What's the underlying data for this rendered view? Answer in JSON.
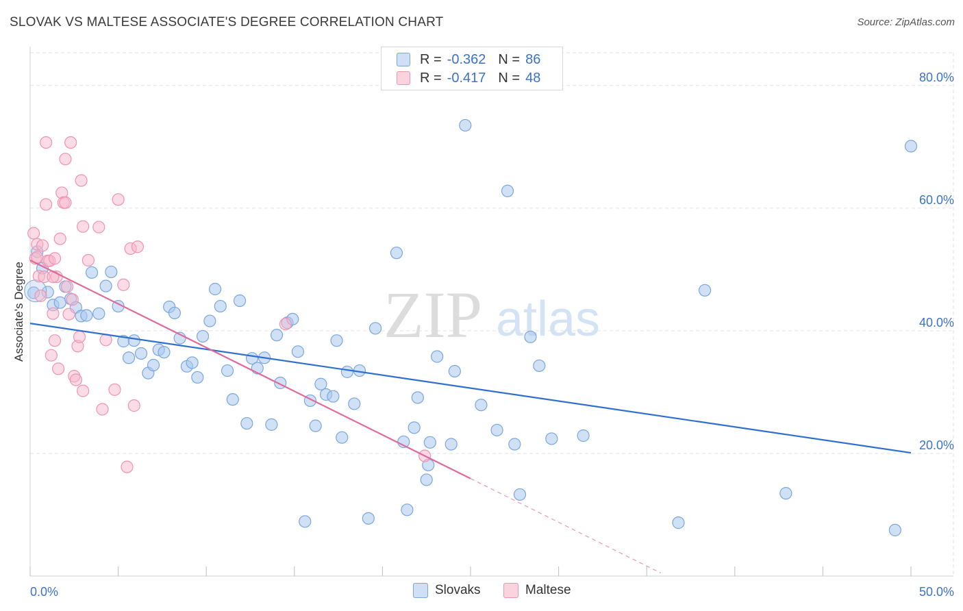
{
  "title": "SLOVAK VS MALTESE ASSOCIATE'S DEGREE CORRELATION CHART",
  "source": "Source: ZipAtlas.com",
  "watermark": {
    "zip": "ZIP",
    "atlas": "atlas"
  },
  "colors": {
    "blue_fill": "#a9c8ee",
    "blue_stroke": "#7aa6dd",
    "blue_line": "#2f6fd0",
    "pink_fill": "#f7b8cc",
    "pink_stroke": "#ee93b1",
    "pink_line": "#e0699a",
    "axis_text": "#3b72c9",
    "grid": "#e2e2e2"
  },
  "legend_top": {
    "rows": [
      {
        "r_label": "R =",
        "r_value": "-0.362",
        "n_label": "N =",
        "n_value": "86",
        "color": "#a9c8ee",
        "border": "#7aa6dd"
      },
      {
        "r_label": "R =",
        "r_value": "-0.417",
        "n_label": "N =",
        "n_value": "48",
        "color": "#f7b8cc",
        "border": "#ee93b1"
      }
    ]
  },
  "legend_bottom": [
    {
      "label": "Slovaks",
      "color": "#a9c8ee",
      "border": "#7aa6dd"
    },
    {
      "label": "Maltese",
      "color": "#f7b8cc",
      "border": "#ee93b1"
    }
  ],
  "chart_data": {
    "type": "scatter",
    "title": "SLOVAK VS MALTESE ASSOCIATE'S DEGREE CORRELATION CHART",
    "xlabel": "",
    "ylabel": "Associate's Degree",
    "xlim": [
      0,
      50
    ],
    "ylim": [
      0,
      85
    ],
    "x_tick_labels": [
      {
        "value": 0,
        "label": "0.0%"
      },
      {
        "value": 50,
        "label": "50.0%"
      }
    ],
    "y_tick_labels": [
      {
        "value": 20,
        "label": "20.0%"
      },
      {
        "value": 40,
        "label": "40.0%"
      },
      {
        "value": 60,
        "label": "60.0%"
      },
      {
        "value": 80,
        "label": "80.0%"
      }
    ],
    "x_minor_ticks": [
      0,
      5,
      10,
      15,
      20,
      25,
      30,
      35,
      40,
      45,
      50
    ],
    "grid": true,
    "series": [
      {
        "name": "Slovaks",
        "color": "#a9c8ee",
        "r": -0.362,
        "n": 86,
        "trend": {
          "x0": 0,
          "y0": 41.2,
          "x1": 50,
          "y1": 20.1
        },
        "points": [
          [
            0.2,
            46.2
          ],
          [
            0.4,
            52.9
          ],
          [
            0.7,
            50.2
          ],
          [
            1.0,
            46.3
          ],
          [
            1.3,
            44.2
          ],
          [
            1.7,
            44.6
          ],
          [
            2.0,
            47.2
          ],
          [
            2.3,
            45.2
          ],
          [
            2.6,
            43.8
          ],
          [
            2.9,
            42.4
          ],
          [
            3.2,
            42.5
          ],
          [
            3.5,
            49.5
          ],
          [
            3.9,
            42.8
          ],
          [
            4.3,
            47.3
          ],
          [
            4.6,
            49.6
          ],
          [
            5.0,
            44.0
          ],
          [
            5.3,
            38.3
          ],
          [
            5.6,
            35.6
          ],
          [
            5.9,
            38.4
          ],
          [
            6.3,
            36.3
          ],
          [
            6.7,
            33.1
          ],
          [
            7.0,
            34.4
          ],
          [
            7.3,
            36.9
          ],
          [
            7.6,
            36.5
          ],
          [
            7.9,
            43.9
          ],
          [
            8.2,
            42.9
          ],
          [
            8.5,
            38.8
          ],
          [
            8.9,
            34.2
          ],
          [
            9.2,
            34.8
          ],
          [
            9.5,
            32.4
          ],
          [
            9.8,
            39.1
          ],
          [
            10.2,
            41.6
          ],
          [
            10.5,
            46.8
          ],
          [
            10.8,
            44.0
          ],
          [
            11.2,
            33.5
          ],
          [
            11.5,
            28.8
          ],
          [
            11.9,
            44.9
          ],
          [
            12.3,
            24.9
          ],
          [
            12.6,
            35.5
          ],
          [
            12.9,
            33.9
          ],
          [
            13.3,
            35.6
          ],
          [
            13.7,
            24.7
          ],
          [
            14.0,
            39.3
          ],
          [
            14.2,
            31.5
          ],
          [
            14.6,
            41.3
          ],
          [
            14.9,
            41.9
          ],
          [
            15.2,
            36.6
          ],
          [
            15.6,
            8.9
          ],
          [
            15.9,
            28.6
          ],
          [
            16.2,
            24.5
          ],
          [
            16.5,
            31.3
          ],
          [
            16.8,
            29.6
          ],
          [
            17.2,
            29.3
          ],
          [
            17.4,
            38.4
          ],
          [
            17.7,
            22.6
          ],
          [
            18.0,
            33.3
          ],
          [
            18.4,
            28.1
          ],
          [
            18.7,
            33.5
          ],
          [
            19.2,
            9.4
          ],
          [
            19.6,
            40.4
          ],
          [
            20.8,
            52.7
          ],
          [
            21.2,
            21.9
          ],
          [
            21.4,
            10.8
          ],
          [
            21.8,
            24.2
          ],
          [
            22.0,
            29.1
          ],
          [
            22.5,
            15.7
          ],
          [
            22.6,
            18.1
          ],
          [
            22.7,
            21.8
          ],
          [
            23.1,
            35.8
          ],
          [
            23.9,
            21.5
          ],
          [
            24.1,
            33.4
          ],
          [
            24.7,
            73.5
          ],
          [
            25.6,
            27.9
          ],
          [
            26.5,
            23.8
          ],
          [
            27.1,
            62.8
          ],
          [
            27.5,
            21.5
          ],
          [
            27.8,
            13.3
          ],
          [
            28.4,
            39.0
          ],
          [
            28.9,
            34.3
          ],
          [
            29.6,
            22.4
          ],
          [
            31.4,
            22.9
          ],
          [
            36.8,
            8.7
          ],
          [
            38.3,
            46.6
          ],
          [
            42.9,
            13.5
          ],
          [
            49.1,
            7.5
          ],
          [
            50.0,
            70.1
          ]
        ]
      },
      {
        "name": "Maltese",
        "color": "#f7b8cc",
        "r": -0.417,
        "n": 48,
        "trend": {
          "x0": 0,
          "y0": 51.5,
          "x1": 25,
          "y1": 15.9
        },
        "trend_dashed": {
          "x0": 25,
          "y0": 15.9,
          "x1": 35.8,
          "y1": 0.5
        },
        "points": [
          [
            0.2,
            55.9
          ],
          [
            0.3,
            51.8
          ],
          [
            0.4,
            54.1
          ],
          [
            0.5,
            48.9
          ],
          [
            0.6,
            45.7
          ],
          [
            0.7,
            53.9
          ],
          [
            0.8,
            48.8
          ],
          [
            0.9,
            60.6
          ],
          [
            1.0,
            51.4
          ],
          [
            1.1,
            51.4
          ],
          [
            1.2,
            36.0
          ],
          [
            1.3,
            42.8
          ],
          [
            1.4,
            38.4
          ],
          [
            1.4,
            51.8
          ],
          [
            1.5,
            48.8
          ],
          [
            1.6,
            33.8
          ],
          [
            1.7,
            55.0
          ],
          [
            1.8,
            62.5
          ],
          [
            1.9,
            60.9
          ],
          [
            2.0,
            68.0
          ],
          [
            2.1,
            47.2
          ],
          [
            2.2,
            42.7
          ],
          [
            2.3,
            70.7
          ],
          [
            2.4,
            45.1
          ],
          [
            2.5,
            32.6
          ],
          [
            2.6,
            32.0
          ],
          [
            2.7,
            37.5
          ],
          [
            2.8,
            39.0
          ],
          [
            2.9,
            64.5
          ],
          [
            3.0,
            30.2
          ],
          [
            3.0,
            57.0
          ],
          [
            3.3,
            51.5
          ],
          [
            3.9,
            56.9
          ],
          [
            4.1,
            27.2
          ],
          [
            4.3,
            38.5
          ],
          [
            4.8,
            30.4
          ],
          [
            5.0,
            61.4
          ],
          [
            5.3,
            47.5
          ],
          [
            5.5,
            17.8
          ],
          [
            5.7,
            53.4
          ],
          [
            5.9,
            27.8
          ],
          [
            6.1,
            53.7
          ],
          [
            14.5,
            41.1
          ],
          [
            22.4,
            19.6
          ],
          [
            0.9,
            70.7
          ],
          [
            0.4,
            52.0
          ],
          [
            2.0,
            60.9
          ],
          [
            1.3,
            48.8
          ]
        ]
      }
    ]
  }
}
